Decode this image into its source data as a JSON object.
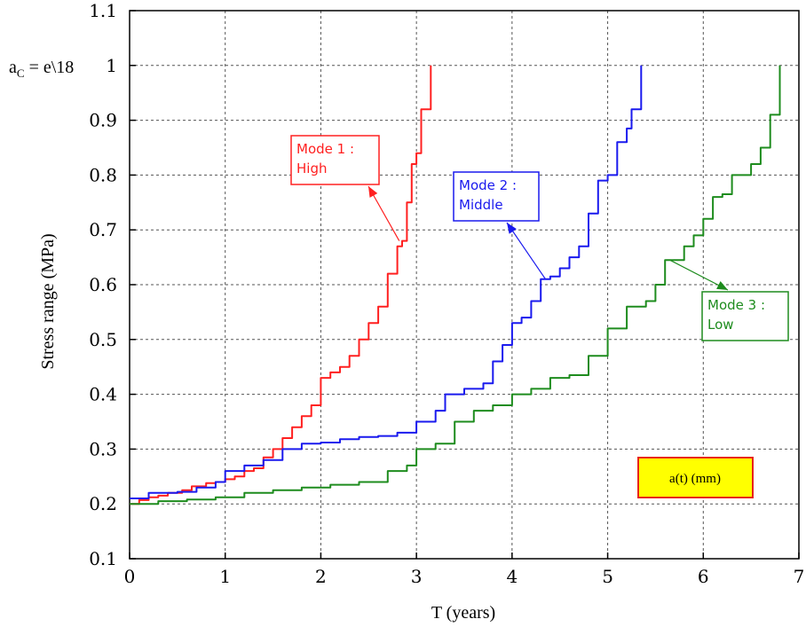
{
  "chart_data": {
    "type": "line",
    "title": "",
    "xlabel": "T (years)",
    "ylabel": "Stress range (MPa)",
    "xlim": [
      0,
      7
    ],
    "ylim": [
      0.1,
      1.1
    ],
    "xticks": [
      "0",
      "1",
      "2",
      "3",
      "4",
      "5",
      "6",
      "7"
    ],
    "yticks": [
      "0.1",
      "0.2",
      "0.3",
      "0.4",
      "0.5",
      "0.6",
      "0.7",
      "0.8",
      "0.9",
      "1",
      "1.1"
    ],
    "grid": true,
    "critical_label": "a_C = e\\18",
    "annotation_box": "a(t) (mm)",
    "series": [
      {
        "name": "Mode 1 : High",
        "color": "#ff2020",
        "points": [
          [
            0,
            0.2
          ],
          [
            0.1,
            0.207
          ],
          [
            0.2,
            0.212
          ],
          [
            0.3,
            0.215
          ],
          [
            0.4,
            0.22
          ],
          [
            0.55,
            0.225
          ],
          [
            0.65,
            0.232
          ],
          [
            0.8,
            0.238
          ],
          [
            0.9,
            0.24
          ],
          [
            1.0,
            0.245
          ],
          [
            1.1,
            0.25
          ],
          [
            1.2,
            0.26
          ],
          [
            1.3,
            0.265
          ],
          [
            1.4,
            0.285
          ],
          [
            1.5,
            0.3
          ],
          [
            1.6,
            0.32
          ],
          [
            1.7,
            0.34
          ],
          [
            1.8,
            0.36
          ],
          [
            1.9,
            0.38
          ],
          [
            2.0,
            0.43
          ],
          [
            2.1,
            0.44
          ],
          [
            2.2,
            0.45
          ],
          [
            2.3,
            0.47
          ],
          [
            2.4,
            0.5
          ],
          [
            2.5,
            0.53
          ],
          [
            2.6,
            0.56
          ],
          [
            2.7,
            0.62
          ],
          [
            2.8,
            0.67
          ],
          [
            2.85,
            0.68
          ],
          [
            2.9,
            0.75
          ],
          [
            2.95,
            0.82
          ],
          [
            3.0,
            0.84
          ],
          [
            3.05,
            0.92
          ],
          [
            3.15,
            1.0
          ]
        ]
      },
      {
        "name": "Mode 2 : Middle",
        "color": "#1a1aee",
        "points": [
          [
            0,
            0.21
          ],
          [
            0.2,
            0.22
          ],
          [
            0.5,
            0.222
          ],
          [
            0.7,
            0.23
          ],
          [
            0.9,
            0.24
          ],
          [
            1.0,
            0.26
          ],
          [
            1.2,
            0.27
          ],
          [
            1.4,
            0.28
          ],
          [
            1.6,
            0.3
          ],
          [
            1.8,
            0.31
          ],
          [
            2.0,
            0.312
          ],
          [
            2.2,
            0.318
          ],
          [
            2.4,
            0.322
          ],
          [
            2.6,
            0.324
          ],
          [
            2.8,
            0.33
          ],
          [
            3.0,
            0.35
          ],
          [
            3.2,
            0.37
          ],
          [
            3.3,
            0.4
          ],
          [
            3.5,
            0.41
          ],
          [
            3.7,
            0.42
          ],
          [
            3.8,
            0.46
          ],
          [
            3.9,
            0.49
          ],
          [
            4.0,
            0.53
          ],
          [
            4.1,
            0.54
          ],
          [
            4.2,
            0.57
          ],
          [
            4.3,
            0.61
          ],
          [
            4.4,
            0.615
          ],
          [
            4.5,
            0.63
          ],
          [
            4.6,
            0.65
          ],
          [
            4.7,
            0.67
          ],
          [
            4.8,
            0.73
          ],
          [
            4.9,
            0.79
          ],
          [
            5.0,
            0.8
          ],
          [
            5.1,
            0.86
          ],
          [
            5.2,
            0.885
          ],
          [
            5.25,
            0.92
          ],
          [
            5.35,
            1.0
          ]
        ]
      },
      {
        "name": "Mode 3 : Low",
        "color": "#1e8c1e",
        "points": [
          [
            0,
            0.2
          ],
          [
            0.3,
            0.205
          ],
          [
            0.6,
            0.208
          ],
          [
            0.9,
            0.212
          ],
          [
            1.2,
            0.22
          ],
          [
            1.5,
            0.225
          ],
          [
            1.8,
            0.23
          ],
          [
            2.1,
            0.235
          ],
          [
            2.4,
            0.24
          ],
          [
            2.7,
            0.26
          ],
          [
            2.9,
            0.27
          ],
          [
            3.0,
            0.3
          ],
          [
            3.2,
            0.31
          ],
          [
            3.4,
            0.35
          ],
          [
            3.6,
            0.37
          ],
          [
            3.8,
            0.38
          ],
          [
            4.0,
            0.4
          ],
          [
            4.2,
            0.41
          ],
          [
            4.4,
            0.43
          ],
          [
            4.6,
            0.435
          ],
          [
            4.8,
            0.47
          ],
          [
            5.0,
            0.52
          ],
          [
            5.2,
            0.56
          ],
          [
            5.4,
            0.57
          ],
          [
            5.5,
            0.6
          ],
          [
            5.6,
            0.645
          ],
          [
            5.8,
            0.67
          ],
          [
            5.9,
            0.69
          ],
          [
            6.0,
            0.72
          ],
          [
            6.1,
            0.76
          ],
          [
            6.2,
            0.765
          ],
          [
            6.3,
            0.8
          ],
          [
            6.5,
            0.82
          ],
          [
            6.6,
            0.85
          ],
          [
            6.7,
            0.91
          ],
          [
            6.8,
            1.0
          ]
        ]
      }
    ],
    "callouts": [
      {
        "lines": [
          "Mode 1 :",
          "High"
        ],
        "color": "#ff2020",
        "arrow_to": [
          2.82,
          0.68
        ]
      },
      {
        "lines": [
          "Mode 2 :",
          "Middle"
        ],
        "color": "#1a1aee",
        "arrow_to": [
          4.35,
          0.61
        ]
      },
      {
        "lines": [
          "Mode 3 :",
          "Low"
        ],
        "color": "#1e8c1e",
        "arrow_to": [
          5.65,
          0.645
        ]
      }
    ]
  }
}
